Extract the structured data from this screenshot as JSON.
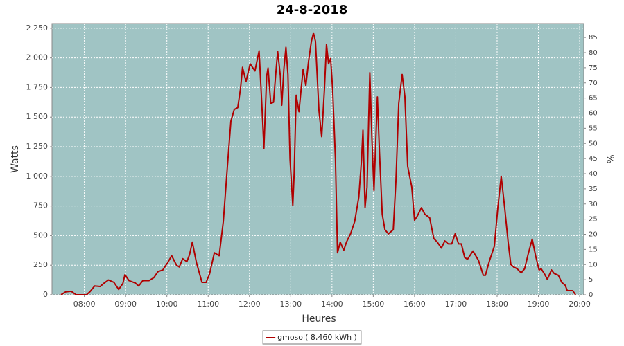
{
  "chart_data": {
    "type": "line",
    "title": "24-8-2018",
    "x_label": "Heures",
    "y_label": "Watts",
    "y2_label": "%",
    "background": "#a0c4c4",
    "grid": true,
    "legend": "bottom",
    "x": [
      446,
      453,
      461,
      468,
      483,
      488,
      495,
      503,
      508,
      515,
      523,
      530,
      536,
      539,
      545,
      554,
      559,
      565,
      574,
      581,
      587,
      594,
      601,
      607,
      614,
      618,
      623,
      629,
      633,
      637,
      643,
      651,
      657,
      662,
      669,
      676,
      682,
      688,
      693,
      698,
      703,
      707,
      710,
      715,
      721,
      728,
      734,
      739,
      741,
      745,
      747,
      751,
      755,
      758,
      761,
      765,
      767,
      770,
      773,
      776,
      779,
      783,
      785,
      788,
      792,
      795,
      798,
      802,
      806,
      810,
      813,
      816,
      821,
      825,
      829,
      832,
      835,
      838,
      841,
      845,
      848,
      852,
      857,
      861,
      867,
      873,
      879,
      883,
      885,
      888,
      891,
      895,
      898,
      901,
      906,
      909,
      913,
      917,
      922,
      929,
      933,
      937,
      942,
      946,
      950,
      956,
      960,
      964,
      970,
      975,
      982,
      988,
      993,
      999,
      1004,
      1009,
      1014,
      1019,
      1024,
      1028,
      1033,
      1037,
      1045,
      1053,
      1060,
      1063,
      1069,
      1076,
      1081,
      1086,
      1091,
      1096,
      1100,
      1104,
      1109,
      1115,
      1120,
      1125,
      1131,
      1136,
      1141,
      1144,
      1149,
      1153,
      1159,
      1163,
      1169,
      1174,
      1179,
      1182,
      1190,
      1194
    ],
    "series": [
      {
        "name": "gmosol( 8,460 kWh )",
        "color": "#b00000",
        "values": [
          0,
          25,
          30,
          0,
          0,
          25,
          75,
          70,
          95,
          125,
          105,
          45,
          95,
          170,
          120,
          100,
          75,
          120,
          120,
          145,
          195,
          210,
          270,
          330,
          250,
          235,
          305,
          280,
          340,
          445,
          270,
          105,
          105,
          175,
          355,
          330,
          620,
          1085,
          1465,
          1565,
          1580,
          1740,
          1920,
          1800,
          1950,
          1890,
          2060,
          1495,
          1235,
          1845,
          1915,
          1615,
          1625,
          1850,
          2055,
          1845,
          1600,
          1905,
          2090,
          1860,
          1145,
          755,
          1030,
          1685,
          1545,
          1730,
          1905,
          1765,
          1975,
          2140,
          2210,
          2140,
          1555,
          1335,
          1730,
          2115,
          1950,
          1995,
          1730,
          1145,
          355,
          445,
          375,
          445,
          515,
          620,
          825,
          1145,
          1390,
          735,
          910,
          1875,
          1320,
          880,
          1670,
          1205,
          680,
          550,
          515,
          550,
          970,
          1615,
          1860,
          1670,
          1085,
          910,
          630,
          665,
          735,
          680,
          650,
          475,
          445,
          395,
          455,
          430,
          430,
          515,
          430,
          430,
          315,
          300,
          370,
          290,
          165,
          165,
          290,
          410,
          735,
          1000,
          735,
          445,
          255,
          235,
          220,
          185,
          220,
          340,
          470,
          330,
          210,
          220,
          175,
          130,
          210,
          180,
          165,
          105,
          80,
          35,
          35,
          0
        ]
      }
    ],
    "xlim": [
      433,
      1206
    ],
    "xticks": [
      {
        "value": 480,
        "label": "08:00"
      },
      {
        "value": 540,
        "label": "09:00"
      },
      {
        "value": 600,
        "label": "10:00"
      },
      {
        "value": 660,
        "label": "11:00"
      },
      {
        "value": 720,
        "label": "12:00"
      },
      {
        "value": 780,
        "label": "13:00"
      },
      {
        "value": 840,
        "label": "14:00"
      },
      {
        "value": 900,
        "label": "15:00"
      },
      {
        "value": 960,
        "label": "16:00"
      },
      {
        "value": 1020,
        "label": "17:00"
      },
      {
        "value": 1080,
        "label": "18:00"
      },
      {
        "value": 1140,
        "label": "19:00"
      },
      {
        "value": 1200,
        "label": "20:00"
      }
    ],
    "ylim": [
      0,
      2290
    ],
    "yticks": [
      0,
      250,
      500,
      750,
      {
        "value": 1000,
        "label": "1 000"
      },
      {
        "value": 1250,
        "label": "1 250"
      },
      {
        "value": 1500,
        "label": "1 500"
      },
      {
        "value": 1750,
        "label": "1 750"
      },
      {
        "value": 2000,
        "label": "2 000"
      },
      {
        "value": 2250,
        "label": "2 250"
      }
    ],
    "y2lim": [
      0,
      89.6
    ],
    "y2ticks": [
      0,
      5,
      10,
      15,
      20,
      25,
      30,
      35,
      40,
      45,
      50,
      55,
      60,
      65,
      70,
      75,
      80,
      85
    ]
  }
}
